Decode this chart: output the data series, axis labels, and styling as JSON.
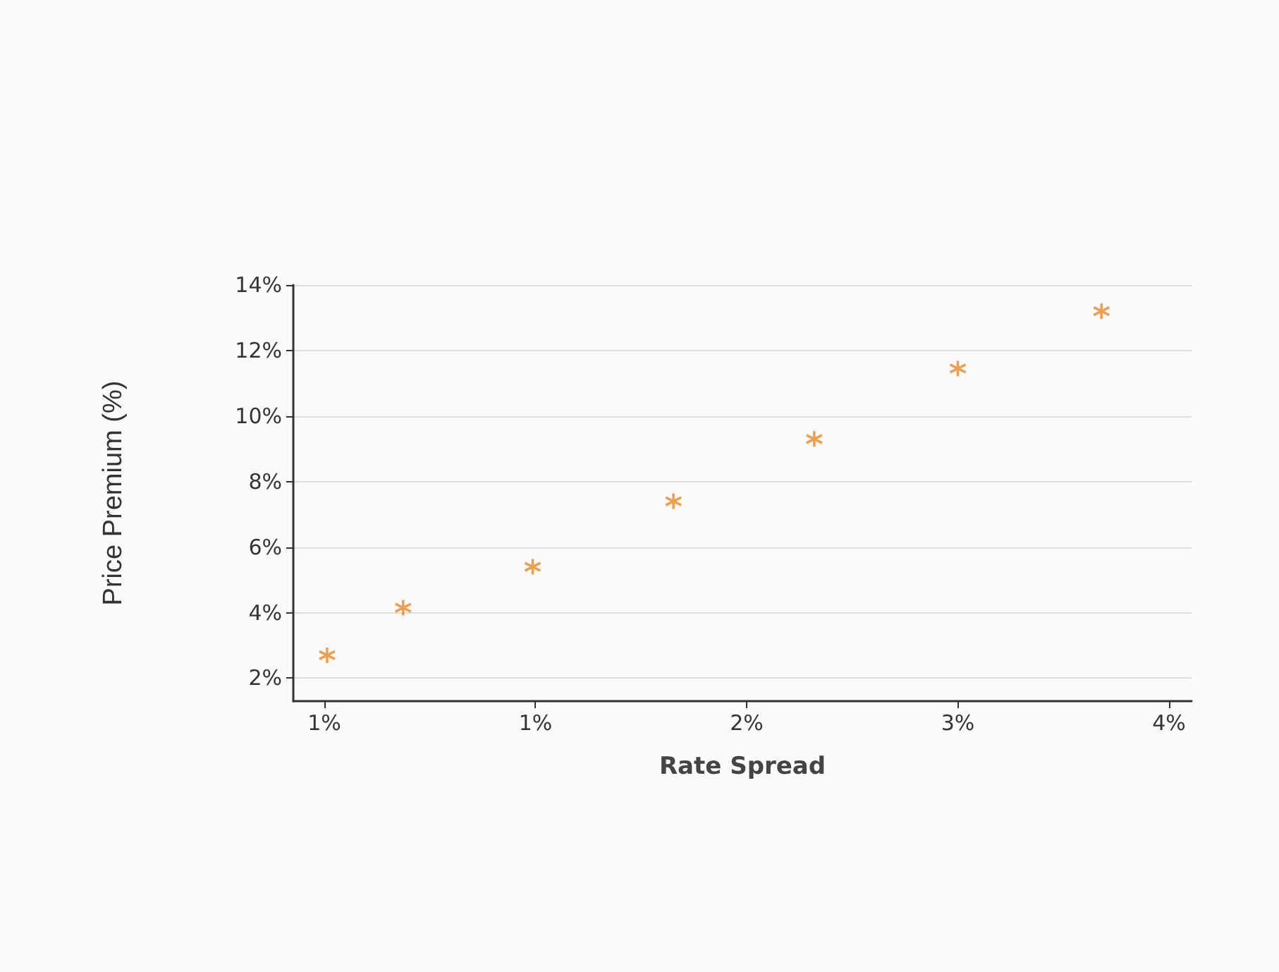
{
  "chart_data": {
    "type": "scatter",
    "xlabel": "Rate Spread",
    "ylabel": "Price Premium (%)",
    "x": [
      0.51,
      0.78,
      1.24,
      1.74,
      2.24,
      2.75,
      3.26
    ],
    "series": [
      {
        "color": "#e8892a",
        "values": [
          2.7,
          4.15,
          5.4,
          7.4,
          9.3,
          11.45,
          13.2
        ]
      }
    ],
    "xlim": [
      0.39,
      3.58
    ],
    "xticks": [
      {
        "value": 0.5,
        "label": "1%"
      },
      {
        "value": 1.25,
        "label": "1%"
      },
      {
        "value": 2,
        "label": "2%"
      },
      {
        "value": 2.75,
        "label": "3%"
      },
      {
        "value": 3.5,
        "label": "4%"
      }
    ],
    "ylim": [
      1.3,
      14
    ],
    "yticks": [
      {
        "value": 2,
        "label": "2%"
      },
      {
        "value": 4,
        "label": "4%"
      },
      {
        "value": 6,
        "label": "6%"
      },
      {
        "value": 8,
        "label": "8%"
      },
      {
        "value": 10,
        "label": "10%"
      },
      {
        "value": 12,
        "label": "12%"
      },
      {
        "value": 14,
        "label": "14%"
      }
    ],
    "grid": "y",
    "marker": "cross"
  }
}
